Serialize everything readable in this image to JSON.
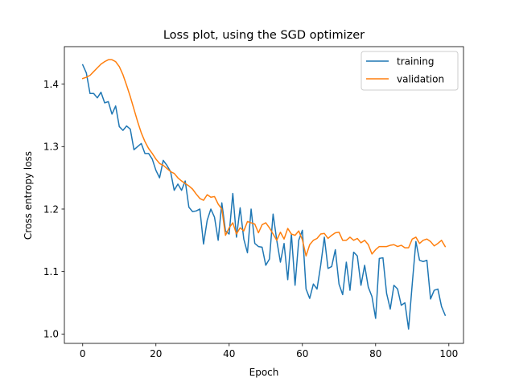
{
  "chart_data": {
    "type": "line",
    "title": "Loss plot, using the SGD optimizer",
    "xlabel": "Epoch",
    "ylabel": "Cross entropy loss",
    "xlim": [
      -5,
      104
    ],
    "ylim": [
      0.985,
      1.46
    ],
    "xticks": [
      0,
      20,
      40,
      60,
      80,
      100
    ],
    "xtick_labels": [
      "0",
      "20",
      "40",
      "60",
      "80",
      "100"
    ],
    "yticks": [
      1.0,
      1.1,
      1.2,
      1.3,
      1.4
    ],
    "ytick_labels": [
      "1.0",
      "1.1",
      "1.2",
      "1.3",
      "1.4"
    ],
    "grid": false,
    "legend": "top-right",
    "series": [
      {
        "name": "training",
        "color": "#1f77b4",
        "values": [
          1.431,
          1.418,
          1.385,
          1.385,
          1.378,
          1.387,
          1.37,
          1.372,
          1.352,
          1.365,
          1.332,
          1.326,
          1.333,
          1.328,
          1.295,
          1.3,
          1.305,
          1.289,
          1.289,
          1.28,
          1.262,
          1.25,
          1.278,
          1.27,
          1.26,
          1.23,
          1.24,
          1.23,
          1.245,
          1.203,
          1.196,
          1.197,
          1.2,
          1.144,
          1.182,
          1.2,
          1.187,
          1.15,
          1.21,
          1.165,
          1.16,
          1.225,
          1.155,
          1.202,
          1.152,
          1.13,
          1.2,
          1.145,
          1.14,
          1.139,
          1.11,
          1.12,
          1.192,
          1.15,
          1.115,
          1.145,
          1.087,
          1.16,
          1.078,
          1.15,
          1.166,
          1.072,
          1.057,
          1.08,
          1.072,
          1.11,
          1.155,
          1.105,
          1.108,
          1.135,
          1.08,
          1.063,
          1.115,
          1.07,
          1.131,
          1.125,
          1.078,
          1.11,
          1.075,
          1.06,
          1.025,
          1.121,
          1.122,
          1.065,
          1.04,
          1.078,
          1.072,
          1.046,
          1.05,
          1.008,
          1.08,
          1.148,
          1.118,
          1.116,
          1.118,
          1.056,
          1.07,
          1.072,
          1.044,
          1.03
        ]
      },
      {
        "name": "validation",
        "color": "#ff7f0e",
        "values": [
          1.409,
          1.411,
          1.414,
          1.42,
          1.426,
          1.432,
          1.436,
          1.439,
          1.439,
          1.436,
          1.428,
          1.415,
          1.398,
          1.38,
          1.36,
          1.34,
          1.322,
          1.308,
          1.297,
          1.289,
          1.28,
          1.273,
          1.27,
          1.265,
          1.26,
          1.257,
          1.25,
          1.245,
          1.241,
          1.237,
          1.232,
          1.224,
          1.217,
          1.214,
          1.223,
          1.219,
          1.22,
          1.208,
          1.2,
          1.158,
          1.17,
          1.178,
          1.16,
          1.17,
          1.165,
          1.18,
          1.178,
          1.176,
          1.162,
          1.175,
          1.178,
          1.17,
          1.16,
          1.15,
          1.163,
          1.152,
          1.169,
          1.16,
          1.158,
          1.165,
          1.151,
          1.125,
          1.143,
          1.15,
          1.153,
          1.16,
          1.161,
          1.153,
          1.158,
          1.162,
          1.163,
          1.15,
          1.15,
          1.155,
          1.15,
          1.153,
          1.146,
          1.15,
          1.143,
          1.128,
          1.135,
          1.14,
          1.14,
          1.14,
          1.142,
          1.143,
          1.14,
          1.142,
          1.138,
          1.138,
          1.152,
          1.155,
          1.145,
          1.15,
          1.152,
          1.148,
          1.141,
          1.145,
          1.15,
          1.14
        ]
      }
    ]
  }
}
